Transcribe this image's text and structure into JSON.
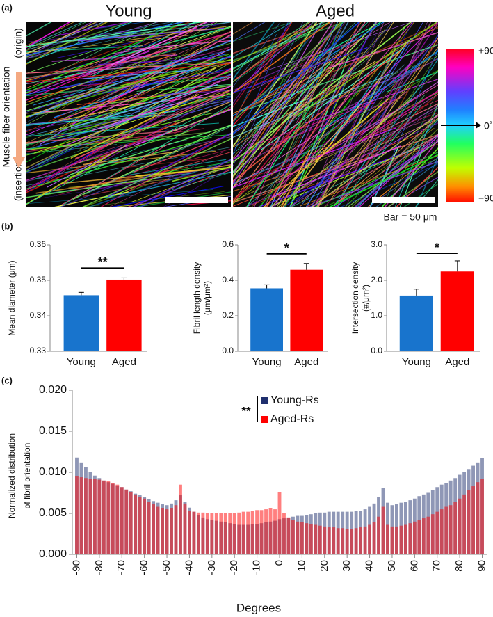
{
  "labels": {
    "a": "(a)",
    "b": "(b)",
    "c": "(c)"
  },
  "images": {
    "titles": [
      "Young",
      "Aged"
    ],
    "axis_label": "Muscle fiber orientation",
    "origin": "(origin)",
    "insertion": "(insertion)",
    "colorbar_labels": [
      "+90˚",
      "0˚",
      "−90˚"
    ],
    "scale_bar": "Bar = 50 μm"
  },
  "chart_data": [
    {
      "type": "bar",
      "ylabel": "Mean diameter (μm)",
      "categories": [
        "Young",
        "Aged"
      ],
      "values": [
        0.3458,
        0.3502
      ],
      "errors": [
        0.0008,
        0.0005
      ],
      "colors": [
        "#1874cd",
        "#ff0000"
      ],
      "ylim": [
        0.33,
        0.36
      ],
      "yticks": [
        0.33,
        0.34,
        0.35,
        0.36
      ],
      "significance": "**"
    },
    {
      "type": "bar",
      "ylabel": [
        "Fibril length density",
        "(μm/μm²)"
      ],
      "categories": [
        "Young",
        "Aged"
      ],
      "values": [
        0.355,
        0.46
      ],
      "errors": [
        0.02,
        0.035
      ],
      "colors": [
        "#1874cd",
        "#ff0000"
      ],
      "ylim": [
        0,
        0.6
      ],
      "yticks": [
        {
          "value": 0,
          "label": "0.0"
        },
        0.2,
        0.4,
        0.6
      ],
      "significance": "*"
    },
    {
      "type": "bar",
      "ylabel": [
        "Intersection density",
        "(#/μm²)"
      ],
      "categories": [
        "Young",
        "Aged"
      ],
      "values": [
        1.57,
        2.25
      ],
      "errors": [
        0.18,
        0.3
      ],
      "colors": [
        "#1874cd",
        "#ff0000"
      ],
      "ylim": [
        0,
        3
      ],
      "yticks": [
        {
          "value": 0,
          "label": "0.0"
        },
        {
          "value": 1,
          "label": "1.0"
        },
        {
          "value": 2,
          "label": "2.0"
        },
        {
          "value": 3,
          "label": "3.0"
        }
      ],
      "significance": "*"
    },
    {
      "type": "overlay-bar",
      "ylabel": [
        "Normalized distribution",
        "of fibril orientation"
      ],
      "xlabel": "Degrees",
      "significance": "**",
      "x": [
        -90,
        -88,
        -86,
        -84,
        -82,
        -80,
        -78,
        -76,
        -74,
        -72,
        -70,
        -68,
        -66,
        -64,
        -62,
        -60,
        -58,
        -56,
        -54,
        -52,
        -50,
        -48,
        -46,
        -44,
        -42,
        -40,
        -38,
        -36,
        -34,
        -32,
        -30,
        -28,
        -26,
        -24,
        -22,
        -20,
        -18,
        -16,
        -14,
        -12,
        -10,
        -8,
        -6,
        -4,
        -2,
        0,
        2,
        4,
        6,
        8,
        10,
        12,
        14,
        16,
        18,
        20,
        22,
        24,
        26,
        28,
        30,
        32,
        34,
        36,
        38,
        40,
        42,
        44,
        46,
        48,
        50,
        52,
        54,
        56,
        58,
        60,
        62,
        64,
        66,
        68,
        70,
        72,
        74,
        76,
        78,
        80,
        82,
        84,
        86,
        88,
        90
      ],
      "series": [
        {
          "name": "Young-Rs",
          "color": "#1f2f6e",
          "values": [
            0.0118,
            0.0112,
            0.0106,
            0.01,
            0.0096,
            0.0093,
            0.009,
            0.0088,
            0.0086,
            0.0084,
            0.0082,
            0.0079,
            0.0077,
            0.0074,
            0.0072,
            0.007,
            0.0067,
            0.0065,
            0.0063,
            0.0061,
            0.006,
            0.0062,
            0.0066,
            0.0072,
            0.0064,
            0.0057,
            0.0052,
            0.0048,
            0.0045,
            0.0043,
            0.0042,
            0.0041,
            0.004,
            0.0039,
            0.0038,
            0.0037,
            0.0036,
            0.0036,
            0.0036,
            0.0037,
            0.0037,
            0.0038,
            0.0039,
            0.004,
            0.0041,
            0.0043,
            0.0044,
            0.0045,
            0.0046,
            0.0047,
            0.0047,
            0.0048,
            0.0049,
            0.005,
            0.0051,
            0.0051,
            0.0052,
            0.0052,
            0.0052,
            0.0052,
            0.0052,
            0.0052,
            0.0053,
            0.0053,
            0.0055,
            0.0058,
            0.0062,
            0.007,
            0.0081,
            0.0063,
            0.006,
            0.0061,
            0.0063,
            0.0064,
            0.0066,
            0.0068,
            0.0071,
            0.0073,
            0.0075,
            0.0078,
            0.0082,
            0.0085,
            0.0087,
            0.009,
            0.0093,
            0.0097,
            0.01,
            0.0104,
            0.0108,
            0.0112,
            0.0117
          ]
        },
        {
          "name": "Aged-Rs",
          "color": "#ff0000",
          "values": [
            0.0095,
            0.0094,
            0.0093,
            0.0092,
            0.0092,
            0.0091,
            0.009,
            0.0089,
            0.0087,
            0.0085,
            0.0082,
            0.0079,
            0.0076,
            0.0073,
            0.007,
            0.0068,
            0.0064,
            0.0061,
            0.0058,
            0.0056,
            0.0055,
            0.0056,
            0.006,
            0.0085,
            0.0062,
            0.0053,
            0.0052,
            0.0051,
            0.0051,
            0.005,
            0.005,
            0.005,
            0.005,
            0.005,
            0.005,
            0.005,
            0.0051,
            0.0052,
            0.0052,
            0.0053,
            0.0054,
            0.0054,
            0.0055,
            0.0056,
            0.0055,
            0.0076,
            0.005,
            0.0045,
            0.0042,
            0.004,
            0.0039,
            0.0038,
            0.0037,
            0.0036,
            0.0035,
            0.0034,
            0.0033,
            0.0033,
            0.0032,
            0.0032,
            0.0031,
            0.0031,
            0.0032,
            0.0033,
            0.0034,
            0.0036,
            0.0039,
            0.0046,
            0.0058,
            0.0036,
            0.0034,
            0.0034,
            0.0035,
            0.0036,
            0.0038,
            0.004,
            0.0042,
            0.0044,
            0.0046,
            0.0049,
            0.0052,
            0.0055,
            0.0058,
            0.006,
            0.0064,
            0.0068,
            0.0073,
            0.0078,
            0.0083,
            0.0088,
            0.0092
          ]
        }
      ],
      "xlim": [
        -92,
        92
      ],
      "xticks": [
        -90,
        -80,
        -70,
        -60,
        -50,
        -40,
        -30,
        -20,
        -10,
        0,
        10,
        20,
        30,
        40,
        50,
        60,
        70,
        80,
        90
      ],
      "ylim": [
        0,
        0.02
      ],
      "yticks": [
        {
          "value": 0,
          "label": "0.000"
        },
        {
          "value": 0.005,
          "label": "0.005"
        },
        {
          "value": 0.01,
          "label": "0.010"
        },
        {
          "value": 0.015,
          "label": "0.015"
        },
        {
          "value": 0.02,
          "label": "0.020"
        }
      ]
    }
  ]
}
